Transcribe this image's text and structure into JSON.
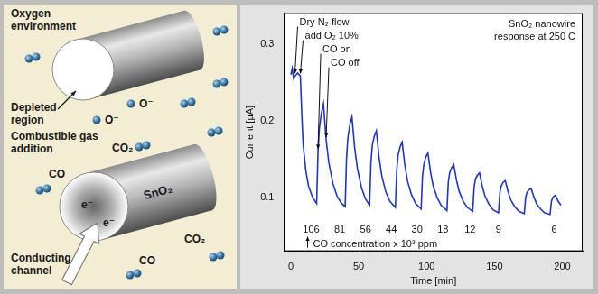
{
  "diagram": {
    "top_wire": {
      "labels": [
        "Oxygen environment",
        "Depleted region"
      ],
      "ions": [
        "O⁻",
        "O⁻"
      ]
    },
    "bottom_wire": {
      "material": "SnO₂",
      "labels": [
        "Combustible gas addition",
        "Conducting channel"
      ],
      "molecules": [
        "CO₂",
        "CO",
        "CO",
        "CO₂"
      ],
      "electrons": [
        "e⁻",
        "e⁻"
      ]
    }
  },
  "chart_data": {
    "type": "line",
    "title": "SnO₂ nanowire response at 250 C",
    "x_label": "Time [min]",
    "y_label": "Current [μA]",
    "color": "#1f35c4",
    "grid": false,
    "xlim": [
      -5,
      215
    ],
    "ylim": [
      0.03,
      0.34
    ],
    "xticks": [
      0,
      50,
      100,
      150,
      200
    ],
    "yticks": [
      0.1,
      0.2,
      0.3
    ],
    "x": [
      0,
      1,
      2,
      3,
      5,
      7,
      8,
      9,
      11,
      13,
      16,
      19,
      20,
      21,
      22.5,
      24,
      26,
      28,
      31,
      34,
      37,
      40,
      41,
      42,
      43.5,
      45,
      47,
      49,
      52,
      55,
      58,
      59,
      60,
      61.5,
      63,
      65,
      67,
      70,
      73,
      77,
      78,
      79,
      80.5,
      82,
      84,
      86,
      89,
      92,
      96,
      97,
      98,
      99.5,
      101,
      103,
      105,
      108,
      111,
      115,
      116,
      117,
      118.5,
      120,
      122,
      124,
      127,
      130,
      134,
      135,
      136,
      137.5,
      139,
      141,
      143,
      146,
      149,
      153,
      154,
      155,
      156.5,
      158,
      160,
      162,
      165,
      168,
      172,
      173,
      174,
      175.5,
      177,
      179,
      181,
      184,
      187,
      191,
      192,
      193,
      194,
      195,
      197,
      199
    ],
    "values": [
      0.26,
      0.268,
      0.255,
      0.258,
      0.262,
      0.258,
      0.21,
      0.17,
      0.135,
      0.115,
      0.1,
      0.092,
      0.16,
      0.19,
      0.21,
      0.222,
      0.175,
      0.145,
      0.118,
      0.102,
      0.093,
      0.088,
      0.15,
      0.178,
      0.195,
      0.205,
      0.165,
      0.138,
      0.113,
      0.098,
      0.09,
      0.145,
      0.168,
      0.18,
      0.187,
      0.152,
      0.128,
      0.107,
      0.095,
      0.087,
      0.135,
      0.155,
      0.166,
      0.172,
      0.142,
      0.121,
      0.103,
      0.092,
      0.085,
      0.128,
      0.143,
      0.153,
      0.158,
      0.132,
      0.114,
      0.099,
      0.089,
      0.083,
      0.12,
      0.132,
      0.139,
      0.143,
      0.123,
      0.108,
      0.095,
      0.087,
      0.082,
      0.113,
      0.124,
      0.129,
      0.132,
      0.115,
      0.102,
      0.091,
      0.084,
      0.08,
      0.106,
      0.115,
      0.12,
      0.122,
      0.108,
      0.097,
      0.088,
      0.082,
      0.079,
      0.1,
      0.107,
      0.11,
      0.112,
      0.101,
      0.092,
      0.085,
      0.08,
      0.078,
      0.095,
      0.1,
      0.102,
      0.103,
      0.095,
      0.09
    ],
    "annotations": [
      {
        "text": "Dry N₂ flow",
        "x": 3
      },
      {
        "text": "add O₂ 10%",
        "x": 7
      },
      {
        "text": "CO on",
        "x": 20
      },
      {
        "text": "CO off",
        "x": 26
      }
    ],
    "co_concentration": {
      "label": "CO concentration x 10³ ppm",
      "x": [
        15,
        36,
        55,
        74,
        93,
        112,
        132,
        153,
        194
      ],
      "values": [
        106,
        81,
        56,
        44,
        30,
        18,
        12,
        9,
        6
      ]
    }
  }
}
